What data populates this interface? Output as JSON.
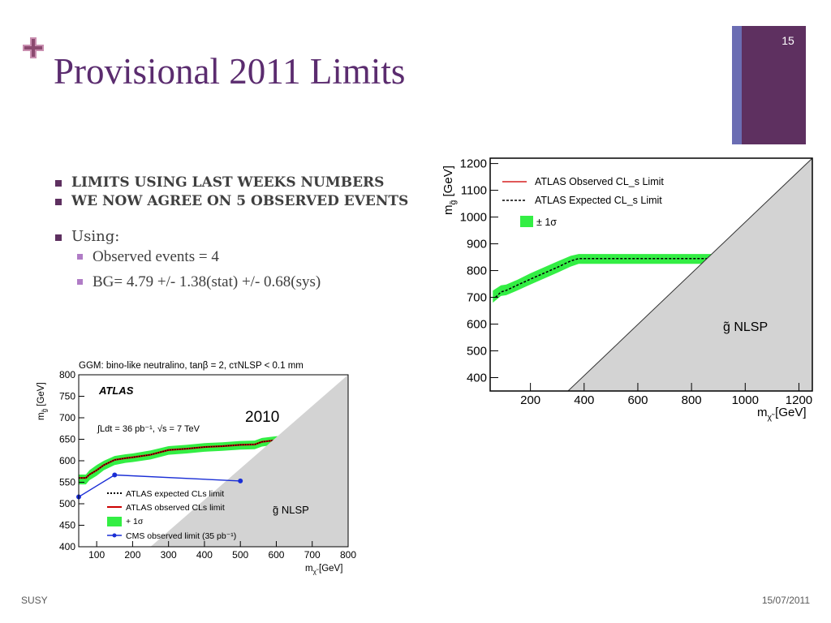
{
  "slide": {
    "title": "Provisional 2011 Limits",
    "page_number": "15",
    "footer_left": "SUSY",
    "footer_right": "15/07/2011",
    "accent_color": "#5e3060",
    "title_color": "#5b2c6f"
  },
  "bullets": {
    "b1": "LIMITS USING LAST WEEKS NUMBERS",
    "b2": "WE NOW AGREE ON 5 OBSERVED EVENTS",
    "b3": "Using:",
    "sub1": "Observed events = 4",
    "sub2": "BG= 4.79 +/- 1.38(stat) +/- 0.68(sys)"
  },
  "chart_data": [
    {
      "type": "line",
      "title": "",
      "xlabel": "m_χ̃ [GeV]",
      "ylabel": "m_g̃ [GeV]",
      "xlim": [
        50,
        1250
      ],
      "ylim": [
        350,
        1220
      ],
      "x_ticks": [
        200,
        400,
        600,
        800,
        1000,
        1200
      ],
      "y_ticks": [
        400,
        500,
        600,
        700,
        800,
        900,
        1000,
        1100,
        1200
      ],
      "legend": [
        "ATLAS Observed CL_s Limit",
        "ATLAS Expected CL_s Limit",
        "± 1σ"
      ],
      "legend_position": "top-left",
      "excluded_region_label": "g̃ NLSP",
      "excluded_region": [
        [
          340,
          350
        ],
        [
          1250,
          1220
        ]
      ],
      "series": [
        {
          "name": "ATLAS Expected CL_s Limit",
          "style": "dashed",
          "color": "#000000",
          "x": [
            70,
            90,
            110,
            150,
            200,
            250,
            300,
            350,
            380,
            450,
            600,
            800,
            880
          ],
          "y": [
            700,
            720,
            726,
            745,
            768,
            790,
            812,
            836,
            845,
            845,
            845,
            845,
            845
          ]
        },
        {
          "name": "± 1σ",
          "style": "band",
          "color": "#33ee44",
          "x": [
            60,
            90,
            110,
            150,
            200,
            250,
            300,
            350,
            380,
            450,
            600,
            800,
            880
          ],
          "y_low": [
            680,
            705,
            708,
            725,
            748,
            770,
            792,
            815,
            825,
            825,
            825,
            825,
            825
          ],
          "y_high": [
            725,
            745,
            748,
            765,
            790,
            812,
            834,
            855,
            862,
            862,
            862,
            862,
            862
          ]
        }
      ]
    },
    {
      "type": "line",
      "title": "GGM: bino-like neutralino, tanβ = 2, cτNLSP < 0.1 mm",
      "xlabel": "m_χ̃ [GeV]",
      "ylabel": "m_g̃ [GeV]",
      "xlim": [
        50,
        800
      ],
      "ylim": [
        400,
        800
      ],
      "x_ticks": [
        100,
        200,
        300,
        400,
        500,
        600,
        700,
        800
      ],
      "y_ticks": [
        400,
        450,
        500,
        550,
        600,
        650,
        700,
        750,
        800
      ],
      "experiment_label": "ATLAS",
      "lumi_label": "∫Ldt = 36 pb⁻¹, √s = 7 TeV",
      "year_label": "2010",
      "excluded_region_label": "g̃ NLSP",
      "excluded_region": [
        [
          250,
          400
        ],
        [
          800,
          800
        ]
      ],
      "legend": [
        "ATLAS expected CLs limit",
        "ATLAS observed CLs limit",
        "+ 1σ",
        "CMS observed limit (35 pb⁻¹)"
      ],
      "legend_position": "bottom-left",
      "series": [
        {
          "name": "ATLAS expected CLs limit",
          "style": "dotted",
          "color": "#000000",
          "x": [
            50,
            70,
            80,
            100,
            120,
            150,
            180,
            200,
            250,
            300,
            350,
            400,
            450,
            500,
            540,
            560,
            600,
            650
          ],
          "y": [
            560,
            560,
            568,
            578,
            590,
            602,
            606,
            608,
            614,
            625,
            628,
            632,
            634,
            637,
            638,
            644,
            648,
            650
          ]
        },
        {
          "name": "ATLAS observed CLs limit",
          "style": "solid",
          "color": "#cc0000",
          "x": [
            50,
            70,
            80,
            100,
            120,
            150,
            180,
            200,
            250,
            300,
            350,
            400,
            450,
            500,
            540,
            560,
            600,
            650
          ],
          "y": [
            560,
            560,
            568,
            578,
            590,
            602,
            606,
            608,
            614,
            625,
            628,
            632,
            634,
            637,
            638,
            644,
            648,
            650
          ]
        },
        {
          "name": "+ 1σ",
          "style": "band",
          "color": "#33ee44",
          "x": [
            50,
            70,
            80,
            100,
            120,
            150,
            180,
            200,
            250,
            300,
            350,
            400,
            450,
            500,
            540,
            560,
            600,
            650
          ],
          "y_low": [
            545,
            545,
            555,
            565,
            578,
            590,
            595,
            597,
            603,
            614,
            617,
            621,
            623,
            626,
            627,
            633,
            638,
            640
          ],
          "y_high": [
            568,
            568,
            578,
            590,
            600,
            611,
            615,
            617,
            624,
            634,
            637,
            641,
            643,
            646,
            647,
            653,
            657,
            658
          ]
        },
        {
          "name": "CMS observed limit (35 pb⁻¹)",
          "style": "solid-markers",
          "color": "#1a2ed6",
          "x": [
            50,
            150,
            500
          ],
          "y": [
            516,
            567,
            553
          ]
        }
      ]
    }
  ]
}
